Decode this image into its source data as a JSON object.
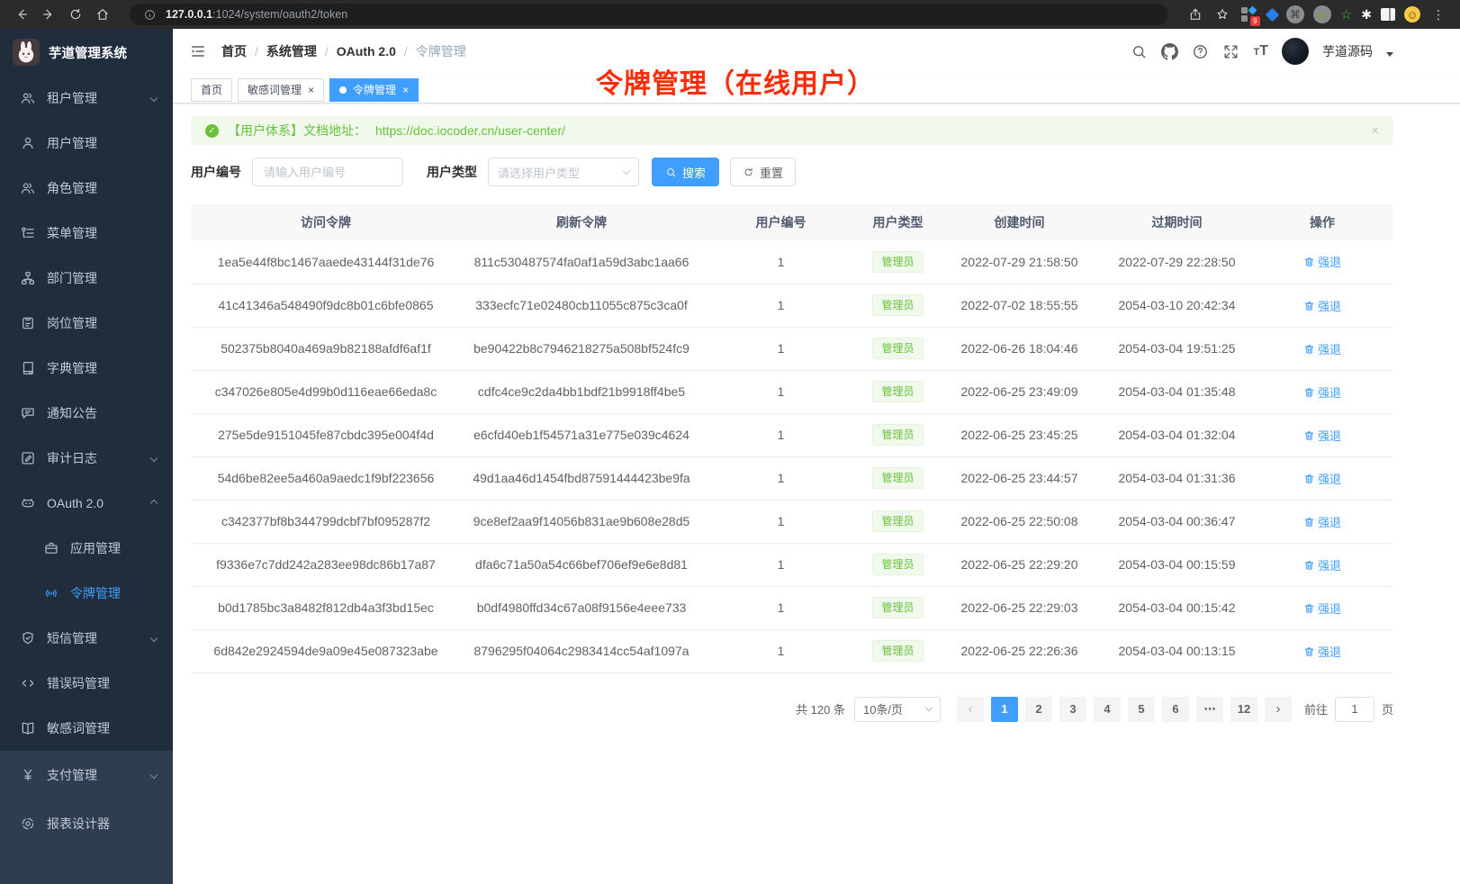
{
  "colors": {
    "accent": "#409eff",
    "success": "#67c23a",
    "annotation_red": "#fd2b06",
    "sidebar_bg": "#1f2d3d",
    "sidebar_light_bg": "#2e3d50"
  },
  "browser": {
    "url_host": "127.0.0.1",
    "url_rest": ":1024/system/oauth2/token",
    "extension_badge": "9"
  },
  "app": {
    "title": "芋道管理系统",
    "user_name": "芋道源码"
  },
  "breadcrumb": [
    "首页",
    "系统管理",
    "OAuth 2.0",
    "令牌管理"
  ],
  "sidebar": {
    "items": [
      {
        "icon": "tenant-users-icon",
        "label": "租户管理",
        "chevron": "down"
      },
      {
        "icon": "user-icon",
        "label": "用户管理"
      },
      {
        "icon": "role-users-icon",
        "label": "角色管理"
      },
      {
        "icon": "menu-list-icon",
        "label": "菜单管理"
      },
      {
        "icon": "org-tree-icon",
        "label": "部门管理"
      },
      {
        "icon": "post-badge-icon",
        "label": "岗位管理"
      },
      {
        "icon": "dict-book-icon",
        "label": "字典管理"
      },
      {
        "icon": "notice-bubble-icon",
        "label": "通知公告"
      },
      {
        "icon": "audit-edit-icon",
        "label": "审计日志",
        "chevron": "down"
      },
      {
        "icon": "oauth-robot-icon",
        "label": "OAuth 2.0",
        "chevron": "up",
        "children": [
          {
            "icon": "app-briefcase-icon",
            "label": "应用管理"
          },
          {
            "icon": "token-signal-icon",
            "label": "令牌管理",
            "active": true
          }
        ]
      },
      {
        "icon": "sms-shield-icon",
        "label": "短信管理",
        "chevron": "down"
      },
      {
        "icon": "errcode-code-icon",
        "label": "错误码管理"
      },
      {
        "icon": "sensitive-book-icon",
        "label": "敏感词管理"
      },
      {
        "icon": "pay-yen-icon",
        "label": "支付管理",
        "chevron": "down",
        "section": "light"
      },
      {
        "icon": "report-designer-icon",
        "label": "报表设计器",
        "section": "light"
      }
    ]
  },
  "tabs": [
    {
      "label": "首页",
      "closable": false,
      "active": false
    },
    {
      "label": "敏感词管理",
      "closable": true,
      "active": false
    },
    {
      "label": "令牌管理",
      "closable": true,
      "active": true
    }
  ],
  "tabs_meta": {
    "close_glyph": "×"
  },
  "annotation": {
    "text": "令牌管理（在线用户）"
  },
  "alert": {
    "text": "【用户体系】文档地址：",
    "link": "https://doc.iocoder.cn/user-center/",
    "close_glyph": "×"
  },
  "filters": {
    "user_id_label": "用户编号",
    "user_id_placeholder": "请输入用户编号",
    "user_type_label": "用户类型",
    "user_type_placeholder": "请选择用户类型",
    "search_label": "搜索",
    "reset_label": "重置"
  },
  "table": {
    "columns": [
      "访问令牌",
      "刷新令牌",
      "用户编号",
      "用户类型",
      "创建时间",
      "过期时间",
      "操作"
    ],
    "action_label": "强退",
    "rows": [
      {
        "access": "1ea5e44f8bc1467aaede43144f31de76",
        "refresh": "811c530487574fa0af1a59d3abc1aa66",
        "user_id": "1",
        "user_type": "管理员",
        "created": "2022-07-29 21:58:50",
        "expired": "2022-07-29 22:28:50"
      },
      {
        "access": "41c41346a548490f9dc8b01c6bfe0865",
        "refresh": "333ecfc71e02480cb11055c875c3ca0f",
        "user_id": "1",
        "user_type": "管理员",
        "created": "2022-07-02 18:55:55",
        "expired": "2054-03-10 20:42:34"
      },
      {
        "access": "502375b8040a469a9b82188afdf6af1f",
        "refresh": "be90422b8c7946218275a508bf524fc9",
        "user_id": "1",
        "user_type": "管理员",
        "created": "2022-06-26 18:04:46",
        "expired": "2054-03-04 19:51:25"
      },
      {
        "access": "c347026e805e4d99b0d116eae66eda8c",
        "refresh": "cdfc4ce9c2da4bb1bdf21b9918ff4be5",
        "user_id": "1",
        "user_type": "管理员",
        "created": "2022-06-25 23:49:09",
        "expired": "2054-03-04 01:35:48"
      },
      {
        "access": "275e5de9151045fe87cbdc395e004f4d",
        "refresh": "e6cfd40eb1f54571a31e775e039c4624",
        "user_id": "1",
        "user_type": "管理员",
        "created": "2022-06-25 23:45:25",
        "expired": "2054-03-04 01:32:04"
      },
      {
        "access": "54d6be82ee5a460a9aedc1f9bf223656",
        "refresh": "49d1aa46d1454fbd87591444423be9fa",
        "user_id": "1",
        "user_type": "管理员",
        "created": "2022-06-25 23:44:57",
        "expired": "2054-03-04 01:31:36"
      },
      {
        "access": "c342377bf8b344799dcbf7bf095287f2",
        "refresh": "9ce8ef2aa9f14056b831ae9b608e28d5",
        "user_id": "1",
        "user_type": "管理员",
        "created": "2022-06-25 22:50:08",
        "expired": "2054-03-04 00:36:47"
      },
      {
        "access": "f9336e7c7dd242a283ee98dc86b17a87",
        "refresh": "dfa6c71a50a54c66bef706ef9e6e8d81",
        "user_id": "1",
        "user_type": "管理员",
        "created": "2022-06-25 22:29:20",
        "expired": "2054-03-04 00:15:59"
      },
      {
        "access": "b0d1785bc3a8482f812db4a3f3bd15ec",
        "refresh": "b0df4980ffd34c67a08f9156e4eee733",
        "user_id": "1",
        "user_type": "管理员",
        "created": "2022-06-25 22:29:03",
        "expired": "2054-03-04 00:15:42"
      },
      {
        "access": "6d842e2924594de9a09e45e087323abe",
        "refresh": "8796295f04064c2983414cc54af1097a",
        "user_id": "1",
        "user_type": "管理员",
        "created": "2022-06-25 22:26:36",
        "expired": "2054-03-04 00:13:15"
      }
    ]
  },
  "pagination": {
    "total": "共 120 条",
    "page_size": "10条/页",
    "prev": "‹",
    "next": "›",
    "pages": [
      "1",
      "2",
      "3",
      "4",
      "5",
      "6",
      "⋯",
      "12"
    ],
    "active_page": "1",
    "goto_label": "前往",
    "goto_value": "1",
    "goto_suffix": "页"
  }
}
